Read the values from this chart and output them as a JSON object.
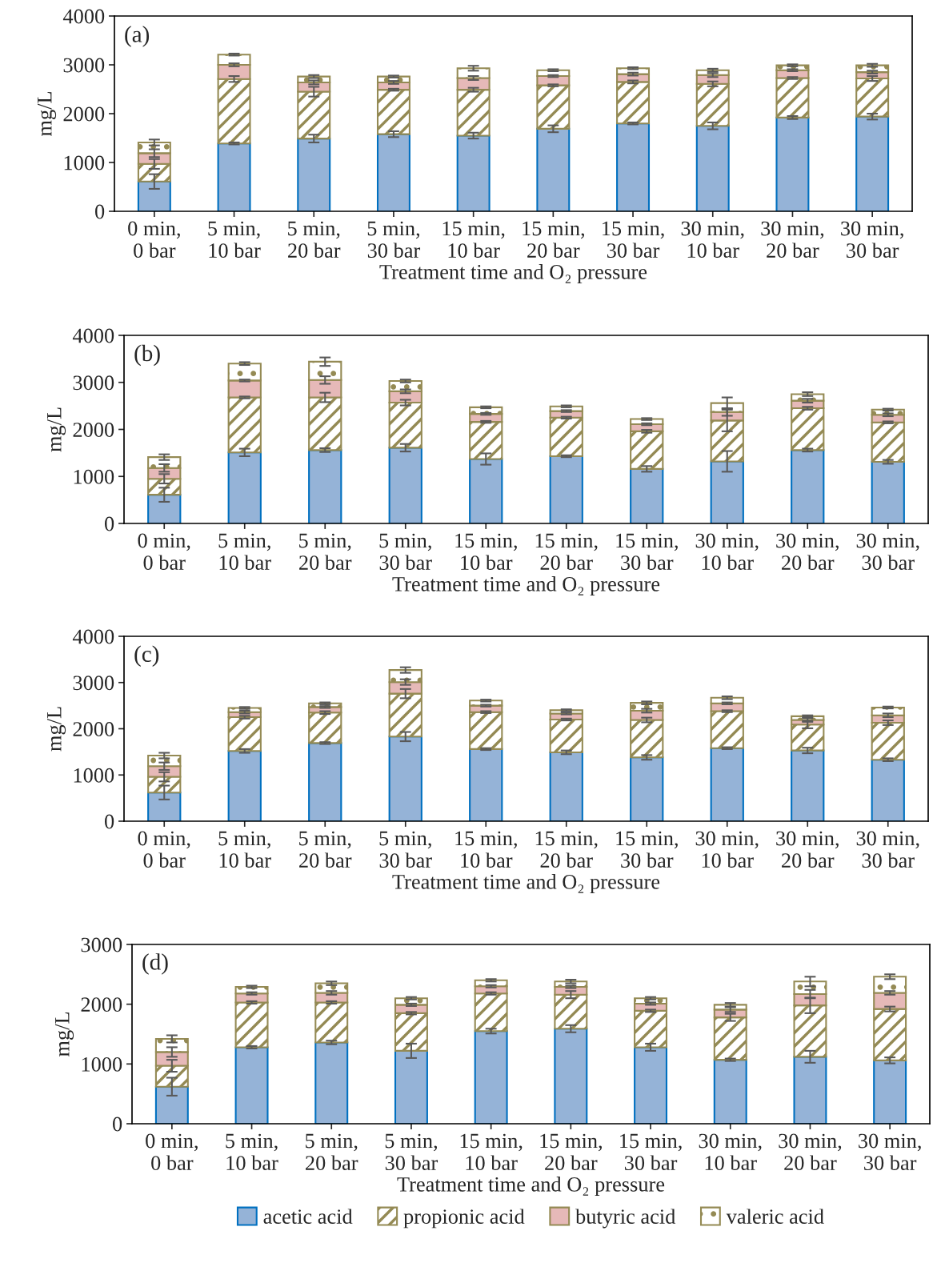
{
  "chart_data": [
    {
      "type": "bar",
      "stacked": true,
      "annotations": [
        "(a)"
      ],
      "xlabel": "Treatment time and O₂ pressure",
      "ylabel": "mg/L",
      "categories": [
        "0 min, 0 bar",
        "5 min, 10 bar",
        "5 min, 20 bar",
        "5 min, 30 bar",
        "15 min, 10 bar",
        "15 min, 20 bar",
        "15 min, 30 bar",
        "30 min, 10 bar",
        "30 min, 20 bar",
        "30 min, 30 bar"
      ],
      "ylim": [
        0,
        4000
      ],
      "yticks": [
        0,
        1000,
        2000,
        3000,
        4000
      ],
      "legend": false,
      "series": [
        {
          "color": "#95b3d7",
          "values": [
            610,
            1390,
            1490,
            1580,
            1550,
            1690,
            1800,
            1750,
            1920,
            1940
          ],
          "errors": [
            150,
            20,
            80,
            60,
            60,
            70,
            20,
            70,
            30,
            60
          ]
        },
        {
          "color": "#948a54",
          "values": [
            360,
            1320,
            960,
            910,
            940,
            890,
            850,
            860,
            810,
            780
          ],
          "errors": [
            100,
            60,
            100,
            20,
            40,
            20,
            30,
            50,
            20,
            50
          ]
        },
        {
          "color": "#e6b9b8",
          "values": [
            220,
            290,
            190,
            150,
            240,
            190,
            160,
            180,
            160,
            130
          ],
          "errors": [
            80,
            30,
            40,
            30,
            40,
            20,
            30,
            40,
            20,
            30
          ]
        },
        {
          "color": "#948a54",
          "values": [
            220,
            210,
            120,
            120,
            200,
            120,
            120,
            100,
            100,
            140
          ],
          "errors": [
            60,
            20,
            30,
            20,
            50,
            20,
            20,
            30,
            20,
            30
          ]
        }
      ]
    },
    {
      "type": "bar",
      "stacked": true,
      "annotations": [
        "(b)"
      ],
      "xlabel": "Treatment time and O₂ pressure",
      "ylabel": "mg/L",
      "categories": [
        "0 min, 0 bar",
        "5 min, 10 bar",
        "5 min, 20 bar",
        "5 min, 30 bar",
        "15 min, 10 bar",
        "15 min, 20 bar",
        "15 min, 30 bar",
        "30 min, 10 bar",
        "30 min, 20 bar",
        "30 min, 30 bar"
      ],
      "ylim": [
        0,
        4000
      ],
      "yticks": [
        0,
        1000,
        2000,
        3000,
        4000
      ],
      "legend": false,
      "series": [
        {
          "color": "#95b3d7",
          "values": [
            610,
            1510,
            1560,
            1610,
            1370,
            1430,
            1160,
            1320,
            1560,
            1310
          ],
          "errors": [
            150,
            80,
            40,
            80,
            120,
            20,
            60,
            220,
            30,
            40
          ]
        },
        {
          "color": "#948a54",
          "values": [
            340,
            1170,
            1120,
            960,
            790,
            820,
            800,
            870,
            890,
            840
          ],
          "errors": [
            100,
            20,
            100,
            60,
            20,
            20,
            30,
            230,
            30,
            20
          ]
        },
        {
          "color": "#e6b9b8",
          "values": [
            230,
            360,
            370,
            240,
            170,
            140,
            150,
            180,
            160,
            160
          ],
          "errors": [
            80,
            20,
            80,
            40,
            20,
            20,
            20,
            80,
            40,
            30
          ]
        },
        {
          "color": "#948a54",
          "values": [
            230,
            360,
            390,
            220,
            140,
            100,
            110,
            190,
            140,
            110
          ],
          "errors": [
            60,
            30,
            90,
            30,
            20,
            20,
            20,
            120,
            40,
            20
          ]
        }
      ]
    },
    {
      "type": "bar",
      "stacked": true,
      "annotations": [
        "(c)"
      ],
      "xlabel": "Treatment time and O₂ pressure",
      "ylabel": "mg/L",
      "categories": [
        "0 min, 0 bar",
        "5 min, 10 bar",
        "5 min, 20 bar",
        "5 min, 30 bar",
        "15 min, 10 bar",
        "15 min, 20 bar",
        "15 min, 30 bar",
        "30 min, 10 bar",
        "30 min, 20 bar",
        "30 min, 30 bar"
      ],
      "ylim": [
        0,
        4000
      ],
      "yticks": [
        0,
        1000,
        2000,
        3000,
        4000
      ],
      "legend": false,
      "series": [
        {
          "color": "#95b3d7",
          "values": [
            620,
            1520,
            1690,
            1830,
            1560,
            1490,
            1380,
            1580,
            1530,
            1330
          ],
          "errors": [
            150,
            40,
            20,
            100,
            20,
            40,
            50,
            20,
            60,
            30
          ]
        },
        {
          "color": "#948a54",
          "values": [
            340,
            730,
            660,
            930,
            800,
            710,
            810,
            800,
            560,
            800
          ],
          "errors": [
            100,
            30,
            30,
            100,
            20,
            20,
            50,
            20,
            80,
            50
          ]
        },
        {
          "color": "#e6b9b8",
          "values": [
            230,
            110,
            120,
            250,
            140,
            130,
            200,
            170,
            100,
            160
          ],
          "errors": [
            80,
            30,
            20,
            60,
            20,
            20,
            40,
            20,
            40,
            40
          ]
        },
        {
          "color": "#948a54",
          "values": [
            230,
            90,
            80,
            260,
            110,
            70,
            170,
            120,
            80,
            170
          ],
          "errors": [
            60,
            20,
            20,
            60,
            20,
            20,
            30,
            30,
            20,
            20
          ]
        }
      ]
    },
    {
      "type": "bar",
      "stacked": true,
      "annotations": [
        "(d)"
      ],
      "xlabel": "Treatment time and O₂ pressure",
      "ylabel": "mg/L",
      "categories": [
        "0 min, 0 bar",
        "5 min, 10 bar",
        "5 min, 20 bar",
        "5 min, 30 bar",
        "15 min, 10 bar",
        "15 min, 20 bar",
        "15 min, 30 bar",
        "30 min, 10 bar",
        "30 min, 20 bar",
        "30 min, 30 bar"
      ],
      "ylim": [
        0,
        3000
      ],
      "yticks": [
        0,
        1000,
        2000,
        3000
      ],
      "legend": "bottom",
      "series": [
        {
          "name": "acetic acid",
          "color": "#95b3d7",
          "values": [
            620,
            1280,
            1360,
            1220,
            1550,
            1590,
            1280,
            1070,
            1120,
            1060
          ],
          "errors": [
            150,
            20,
            30,
            120,
            40,
            60,
            60,
            20,
            100,
            50
          ]
        },
        {
          "name": "propionic acid",
          "color": "#948a54",
          "values": [
            350,
            750,
            670,
            630,
            630,
            570,
            610,
            710,
            860,
            860
          ],
          "errors": [
            100,
            20,
            20,
            20,
            20,
            60,
            20,
            60,
            130,
            40
          ]
        },
        {
          "name": "butyric acid",
          "color": "#e6b9b8",
          "values": [
            230,
            150,
            160,
            140,
            120,
            130,
            120,
            130,
            190,
            270
          ],
          "errors": [
            80,
            20,
            30,
            20,
            20,
            20,
            20,
            40,
            70,
            30
          ]
        },
        {
          "name": "valeric acid",
          "color": "#948a54",
          "values": [
            220,
            110,
            160,
            110,
            100,
            90,
            90,
            80,
            210,
            270
          ],
          "errors": [
            60,
            20,
            30,
            20,
            20,
            30,
            20,
            30,
            80,
            40
          ]
        }
      ]
    }
  ]
}
